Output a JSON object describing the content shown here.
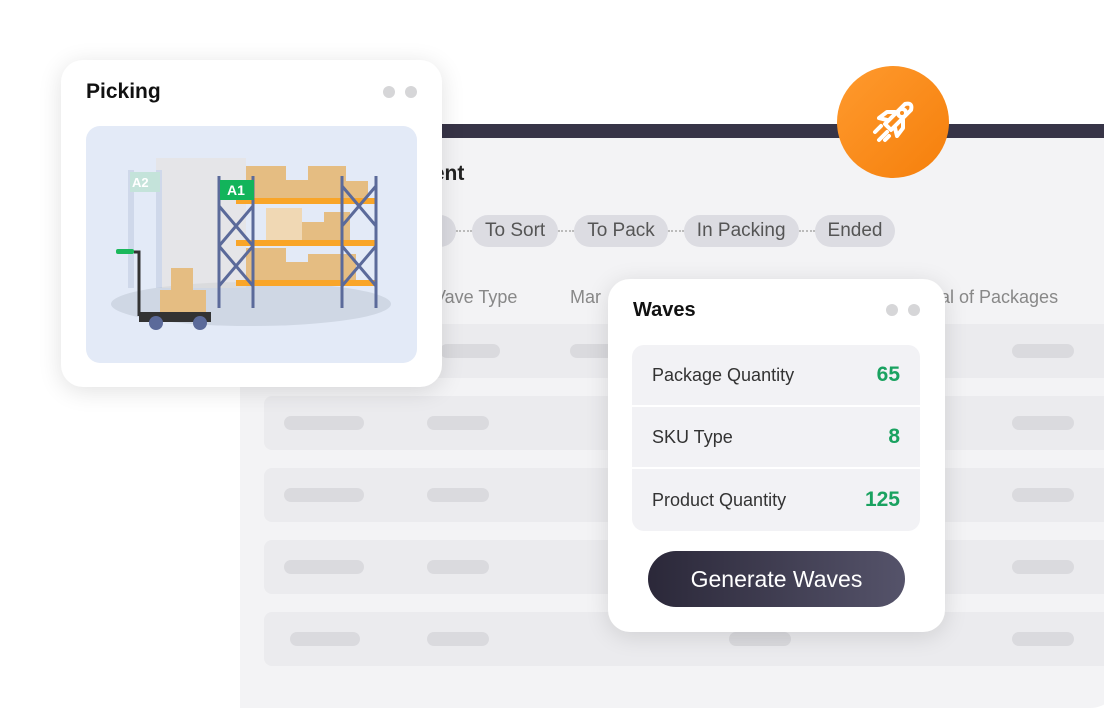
{
  "background_panel": {
    "title_fragment": "nent",
    "steps": [
      "To Sort",
      "To Pack",
      "In Packing",
      "Ended"
    ],
    "columns": [
      "Vave Type",
      "Mar",
      "al of Packages"
    ]
  },
  "picking": {
    "title": "Picking",
    "labels": {
      "a1": "A1",
      "a2": "A2"
    }
  },
  "waves": {
    "title": "Waves",
    "stats": [
      {
        "label": "Package Quantity",
        "value": "65"
      },
      {
        "label": "SKU Type",
        "value": "8"
      },
      {
        "label": "Product Quantity",
        "value": "125"
      }
    ],
    "button": "Generate Waves"
  },
  "colors": {
    "accent": "#f7891a",
    "value_green": "#1aa260",
    "dark": "#373447"
  },
  "icons": [
    "rocket-icon",
    "warehouse-illustration"
  ]
}
